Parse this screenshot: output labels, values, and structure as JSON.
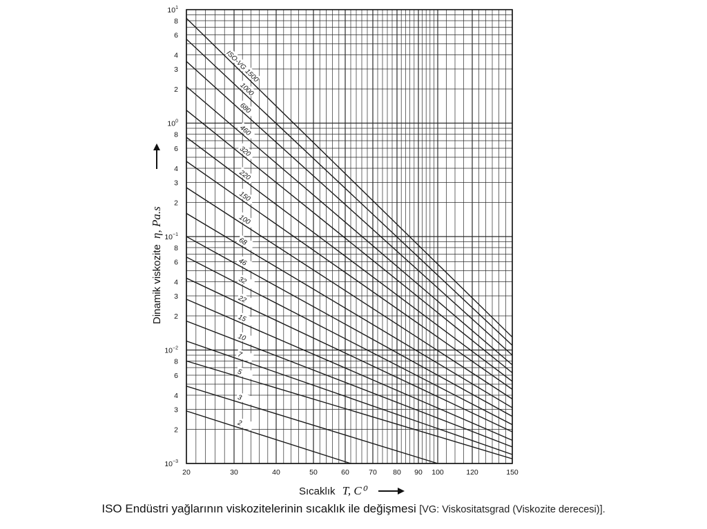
{
  "caption": {
    "main": "ISO Endüstri yağlarının viskozitelerinin sıcaklık ile değişmesi",
    "note": "[VG: Viskositatsgrad (Viskozite derecesi)]."
  },
  "colors": {
    "line": "#1a1a1a",
    "grid": "#2a2a2a",
    "background": "#ffffff"
  },
  "chart_data": {
    "type": "line",
    "title": "",
    "xlabel": "Sıcaklık",
    "xlabel_symbol": "T, C⁰",
    "ylabel": "Dinamik viskozite",
    "ylabel_symbol": "η, Pa.s",
    "x_scale": "viscosity-temperature (Walther-type)",
    "y_scale": "log",
    "xlim": [
      20,
      150
    ],
    "ylim": [
      0.001,
      10
    ],
    "grid": true,
    "x_ticks": [
      20,
      30,
      40,
      50,
      60,
      70,
      80,
      90,
      100,
      120,
      150
    ],
    "x_tick_labels": [
      "20",
      "30",
      "40",
      "50",
      "60",
      "70",
      "80",
      "90",
      "100",
      "120",
      "150"
    ],
    "y_ticks": [
      {
        "value": 10,
        "mant": "10",
        "exp": "1"
      },
      {
        "value": 8,
        "mant": "8",
        "exp": ""
      },
      {
        "value": 6,
        "mant": "6",
        "exp": ""
      },
      {
        "value": 4,
        "mant": "4",
        "exp": ""
      },
      {
        "value": 3,
        "mant": "3",
        "exp": ""
      },
      {
        "value": 2,
        "mant": "2",
        "exp": ""
      },
      {
        "value": 1,
        "mant": "10",
        "exp": "0"
      },
      {
        "value": 0.8,
        "mant": "8",
        "exp": ""
      },
      {
        "value": 0.6,
        "mant": "6",
        "exp": ""
      },
      {
        "value": 0.4,
        "mant": "4",
        "exp": ""
      },
      {
        "value": 0.3,
        "mant": "3",
        "exp": ""
      },
      {
        "value": 0.2,
        "mant": "2",
        "exp": ""
      },
      {
        "value": 0.1,
        "mant": "10",
        "exp": "−1"
      },
      {
        "value": 0.08,
        "mant": "8",
        "exp": ""
      },
      {
        "value": 0.06,
        "mant": "6",
        "exp": ""
      },
      {
        "value": 0.04,
        "mant": "4",
        "exp": ""
      },
      {
        "value": 0.03,
        "mant": "3",
        "exp": ""
      },
      {
        "value": 0.02,
        "mant": "2",
        "exp": ""
      },
      {
        "value": 0.01,
        "mant": "10",
        "exp": "−2"
      },
      {
        "value": 0.008,
        "mant": "8",
        "exp": ""
      },
      {
        "value": 0.006,
        "mant": "6",
        "exp": ""
      },
      {
        "value": 0.004,
        "mant": "4",
        "exp": ""
      },
      {
        "value": 0.003,
        "mant": "3",
        "exp": ""
      },
      {
        "value": 0.002,
        "mant": "2",
        "exp": ""
      },
      {
        "value": 0.001,
        "mant": "10",
        "exp": "−3"
      }
    ],
    "series": [
      {
        "name": "ISO-VG 1500",
        "values": [
          {
            "x": 20,
            "y": 8.4
          },
          {
            "x": 150,
            "y": 0.013
          }
        ]
      },
      {
        "name": "1000",
        "values": [
          {
            "x": 20,
            "y": 5.5
          },
          {
            "x": 150,
            "y": 0.011
          }
        ]
      },
      {
        "name": "680",
        "values": [
          {
            "x": 20,
            "y": 3.5
          },
          {
            "x": 150,
            "y": 0.009
          }
        ]
      },
      {
        "name": "460",
        "values": [
          {
            "x": 20,
            "y": 2.1
          },
          {
            "x": 150,
            "y": 0.0074
          }
        ]
      },
      {
        "name": "320",
        "values": [
          {
            "x": 20,
            "y": 1.3
          },
          {
            "x": 150,
            "y": 0.0063
          }
        ]
      },
      {
        "name": "220",
        "values": [
          {
            "x": 20,
            "y": 0.75
          },
          {
            "x": 150,
            "y": 0.0053
          }
        ]
      },
      {
        "name": "150",
        "values": [
          {
            "x": 20,
            "y": 0.46
          },
          {
            "x": 150,
            "y": 0.0045
          }
        ]
      },
      {
        "name": "100",
        "values": [
          {
            "x": 20,
            "y": 0.27
          },
          {
            "x": 150,
            "y": 0.0037
          }
        ]
      },
      {
        "name": "68",
        "values": [
          {
            "x": 20,
            "y": 0.16
          },
          {
            "x": 150,
            "y": 0.0031
          }
        ]
      },
      {
        "name": "46",
        "values": [
          {
            "x": 20,
            "y": 0.1
          },
          {
            "x": 150,
            "y": 0.0026
          }
        ]
      },
      {
        "name": "32",
        "values": [
          {
            "x": 20,
            "y": 0.066
          },
          {
            "x": 150,
            "y": 0.0022
          }
        ]
      },
      {
        "name": "22",
        "values": [
          {
            "x": 20,
            "y": 0.043
          },
          {
            "x": 150,
            "y": 0.0019
          }
        ]
      },
      {
        "name": "15",
        "values": [
          {
            "x": 20,
            "y": 0.028
          },
          {
            "x": 150,
            "y": 0.0016
          }
        ]
      },
      {
        "name": "10",
        "values": [
          {
            "x": 20,
            "y": 0.018
          },
          {
            "x": 150,
            "y": 0.0014
          }
        ]
      },
      {
        "name": "7",
        "values": [
          {
            "x": 20,
            "y": 0.012
          },
          {
            "x": 150,
            "y": 0.0012
          }
        ]
      },
      {
        "name": "5",
        "values": [
          {
            "x": 20,
            "y": 0.008
          },
          {
            "x": 150,
            "y": 0.0011
          }
        ]
      },
      {
        "name": "3",
        "values": [
          {
            "x": 20,
            "y": 0.0048
          },
          {
            "x": 100,
            "y": 0.001
          }
        ]
      },
      {
        "name": "2",
        "values": [
          {
            "x": 20,
            "y": 0.0029
          },
          {
            "x": 62,
            "y": 0.001
          }
        ]
      }
    ]
  }
}
